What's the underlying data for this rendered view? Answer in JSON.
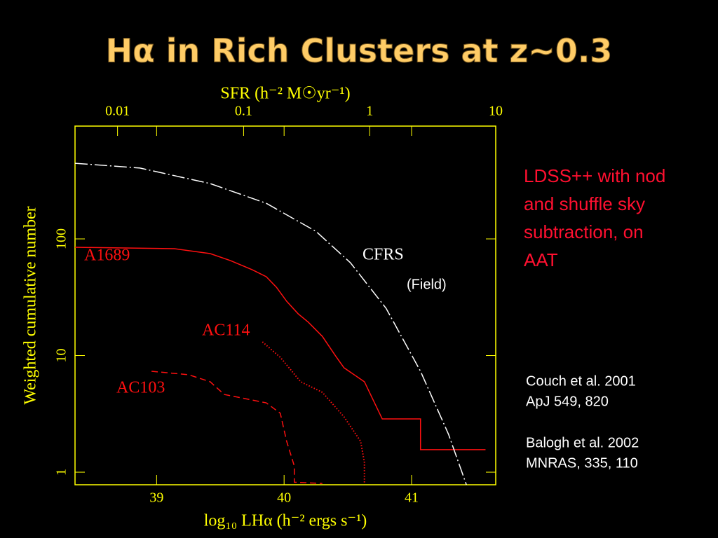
{
  "chart_data": {
    "type": "line",
    "title": "Hα in Rich Clusters at z~0.3",
    "x_label": "log₁₀ LHα (h⁻² ergs s⁻¹)",
    "x2_label": "SFR (h⁻² M☉yr⁻¹)",
    "y_label": "Weighted cumulative number",
    "xlim": [
      38.36,
      41.66
    ],
    "xticks": [
      39,
      40,
      41
    ],
    "x2lim": [
      0.0046,
      10
    ],
    "x2ticks": [
      0.01,
      0.1,
      1,
      10
    ],
    "x2_log": true,
    "ylim": [
      0.78,
      927
    ],
    "yticks": [
      1,
      10,
      100
    ],
    "y_log": true,
    "axis_color": "#ffff00",
    "series": [
      {
        "name": "A1689",
        "color": "#ff1010",
        "dash": "solid",
        "x": [
          38.36,
          39.14,
          39.42,
          39.58,
          39.75,
          39.86,
          39.94,
          40.02,
          40.11,
          40.19,
          40.3,
          40.41,
          40.47,
          40.63,
          40.77,
          41.07,
          41.07,
          41.58
        ],
        "values": [
          84.7,
          82.4,
          74.8,
          65.1,
          54.4,
          47.4,
          38.5,
          29.2,
          22.8,
          19.3,
          14.6,
          9.7,
          7.85,
          5.96,
          2.86,
          2.86,
          1.56,
          1.56
        ]
      },
      {
        "name": "AC114",
        "color": "#ff1010",
        "dash": "dotted",
        "x": [
          39.83,
          39.97,
          40.13,
          40.3,
          40.47,
          40.6,
          40.63,
          40.63
        ],
        "values": [
          13.1,
          9.66,
          5.96,
          4.84,
          2.98,
          1.84,
          1.21,
          0.8
        ]
      },
      {
        "name": "AC103",
        "color": "#ff1010",
        "dash": "dashed",
        "x": [
          38.96,
          39.25,
          39.42,
          39.53,
          39.86,
          39.97,
          40.02,
          40.08,
          40.08,
          40.3
        ],
        "values": [
          7.33,
          6.85,
          5.96,
          4.64,
          3.93,
          3.2,
          1.84,
          1.13,
          0.82,
          0.8
        ]
      },
      {
        "name": "CFRS",
        "color": "#ffffff",
        "dash": "dashdot",
        "x": [
          38.36,
          38.87,
          39.42,
          39.86,
          40.25,
          40.52,
          40.8,
          41.07,
          41.29,
          41.43
        ],
        "values": [
          445,
          405,
          298,
          202,
          116,
          62.5,
          25.4,
          7.33,
          2.11,
          0.78
        ]
      }
    ],
    "annotations": [
      "(Field)"
    ],
    "side_text": [
      "LDSS++ with nod",
      "and shuffle sky",
      "subtraction, on",
      "AAT"
    ],
    "references": [
      "Couch et al. 2001",
      "ApJ 549, 820",
      "Balogh et al. 2002",
      "MNRAS, 335, 110"
    ]
  }
}
